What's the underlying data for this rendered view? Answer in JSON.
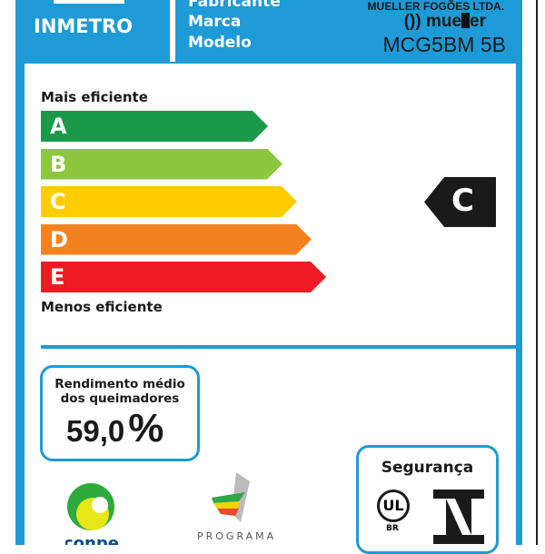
{
  "header": {
    "brand": "INMETRO",
    "labels": [
      "Fabricante",
      "Marca",
      "Modelo"
    ],
    "manufacturer": "MUELLER FOGÕES LTDA.",
    "brand_name_left": "mue",
    "brand_name_right": "er",
    "model": "MCG5BM 5B"
  },
  "scale": {
    "top_label": "Mais eficiente",
    "bottom_label": "Menos eficiente",
    "classes": [
      {
        "letter": "A",
        "color": "#1a9a48"
      },
      {
        "letter": "B",
        "color": "#8dc63f"
      },
      {
        "letter": "C",
        "color": "#ffcc00"
      },
      {
        "letter": "D",
        "color": "#f58220"
      },
      {
        "letter": "E",
        "color": "#ed1c24"
      }
    ],
    "rating": "C"
  },
  "efficiency": {
    "title_line1": "Rendimento médio",
    "title_line2": "dos queimadores",
    "value": "59,0",
    "unit": "%"
  },
  "safety": {
    "title": "Segurança",
    "ul_mark": "UL",
    "ul_sub": "BR"
  },
  "logos": {
    "conpet": "conpet",
    "programa": "PROGRAMA"
  },
  "colors": {
    "frame": "#1e9ad6"
  }
}
